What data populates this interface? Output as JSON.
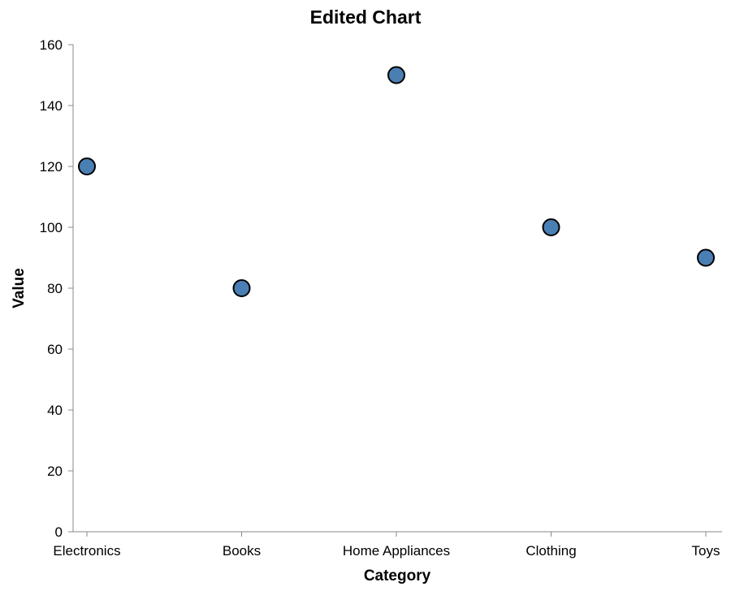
{
  "chart_data": {
    "type": "scatter",
    "title": "Edited Chart",
    "xlabel": "Category",
    "ylabel": "Value",
    "categories": [
      "Electronics",
      "Books",
      "Home Appliances",
      "Clothing",
      "Toys"
    ],
    "values": [
      120,
      80,
      150,
      100,
      90
    ],
    "ylim": [
      0,
      160
    ],
    "yticks": [
      0,
      20,
      40,
      60,
      80,
      100,
      120,
      140,
      160
    ],
    "grid": false,
    "point_color": "#4a7fb4"
  }
}
